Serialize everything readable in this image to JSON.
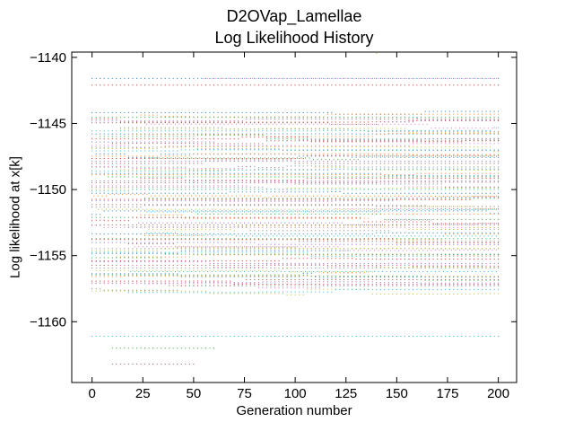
{
  "chart_data": {
    "type": "scatter",
    "title": "D2OVap_Lamellae",
    "subtitle": "Log Likelihood History",
    "xlabel": "Generation number",
    "ylabel": "Log likelihood at x[k]",
    "xlim": [
      -10,
      209
    ],
    "ylim": [
      -1164.6,
      -1139.6
    ],
    "xticks": [
      0,
      25,
      50,
      75,
      100,
      125,
      150,
      175,
      200
    ],
    "yticks": [
      -1140,
      -1145,
      -1150,
      -1155,
      -1160
    ],
    "grid": false,
    "series_colors": [
      "#1f77b4",
      "#ff7f0e",
      "#2ca02c",
      "#d62728",
      "#9467bd",
      "#8c564b",
      "#e377c2",
      "#7f7f7f",
      "#bcbd22",
      "#17becf"
    ],
    "population": {
      "generations": [
        0,
        200
      ],
      "dense_band": [
        -1144.2,
        -1157.8
      ],
      "sparse_outliers": [
        {
          "x": [
            0,
            200
          ],
          "y": -1141.6
        },
        {
          "x": [
            0,
            200
          ],
          "y": -1142.1
        },
        {
          "x": [
            55,
            200
          ],
          "y": -1141.6
        },
        {
          "x": [
            0,
            200
          ],
          "y": -1161.1
        },
        {
          "x": [
            10,
            60
          ],
          "y": -1162.0
        },
        {
          "x": [
            10,
            50
          ],
          "y": -1163.2
        },
        {
          "x": [
            140,
            141
          ],
          "y": -1139.7
        }
      ]
    }
  }
}
